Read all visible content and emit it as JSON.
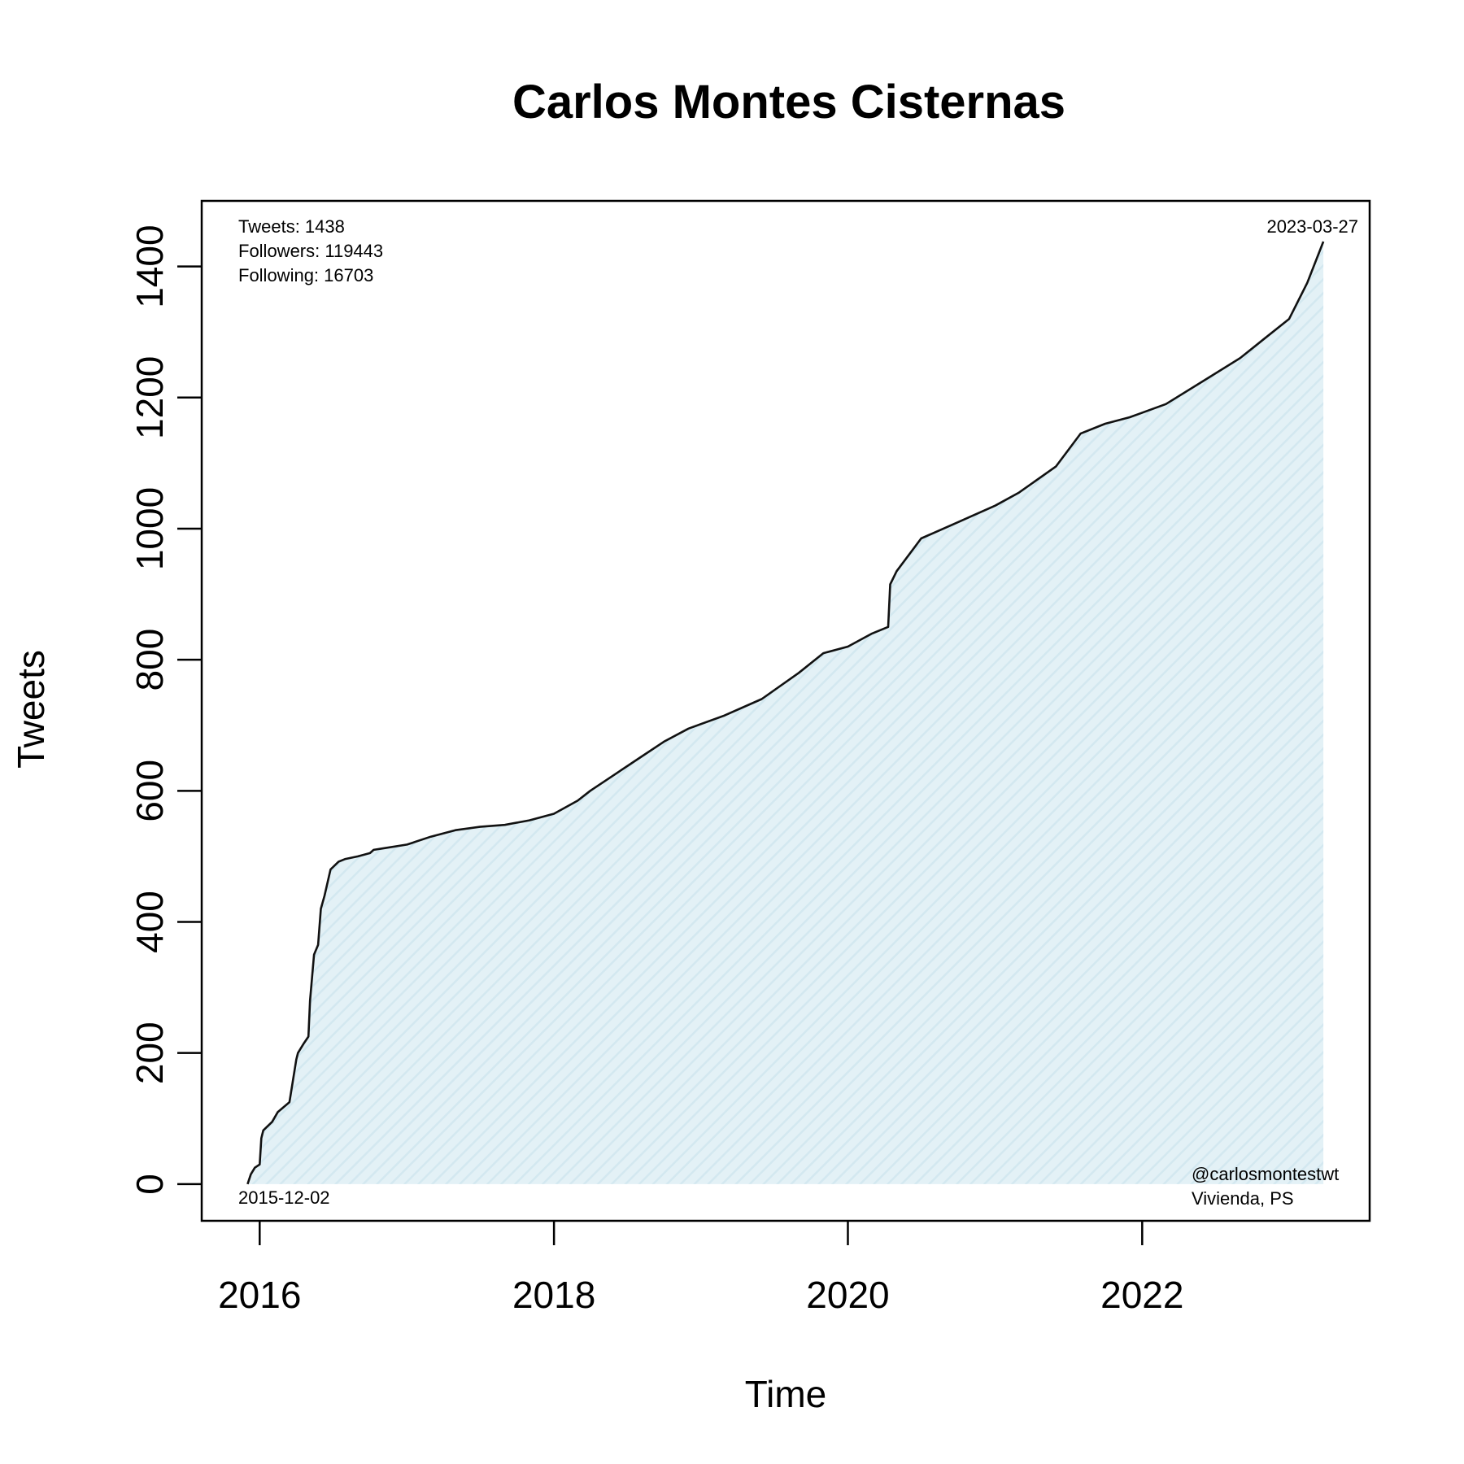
{
  "chart_data": {
    "type": "area",
    "title": "Carlos Montes Cisternas",
    "xlabel": "Time",
    "ylabel": "Tweets",
    "x_ticks": [
      "2016",
      "2018",
      "2020",
      "2022"
    ],
    "y_ticks": [
      0,
      200,
      400,
      600,
      800,
      1000,
      1200,
      1400
    ],
    "xlim": [
      "2015-08-10",
      "2023-07-20"
    ],
    "ylim": [
      -56,
      1500
    ],
    "grid": false,
    "legend": "none",
    "annotations": {
      "tweets": "Tweets: 1438",
      "followers": "Followers: 119443",
      "following": "Following: 16703",
      "start_date": "2015-12-02",
      "end_date": "2023-03-27",
      "handle": "@carlosmontestwt",
      "affiliation": "Vivienda, PS"
    },
    "colors": {
      "line": "#111111",
      "fill": "#e3f1f6"
    },
    "series": [
      {
        "x": [
          "2015-12-02",
          "2015-12-10",
          "2015-12-20",
          "2016-01-01",
          "2016-01-05",
          "2016-01-10",
          "2016-02-01",
          "2016-02-15",
          "2016-03-15",
          "2016-04-01",
          "2016-04-05",
          "2016-04-20",
          "2016-05-01",
          "2016-05-05",
          "2016-05-15",
          "2016-05-25",
          "2016-06-01",
          "2016-06-10",
          "2016-06-25",
          "2016-07-15",
          "2016-08-01",
          "2016-09-01",
          "2016-10-01",
          "2016-10-10",
          "2016-11-01",
          "2017-01-01",
          "2017-03-01",
          "2017-05-01",
          "2017-07-01",
          "2017-09-01",
          "2017-11-01",
          "2018-01-01",
          "2018-03-01",
          "2018-04-01",
          "2018-06-01",
          "2018-08-01",
          "2018-10-01",
          "2018-12-01",
          "2019-03-01",
          "2019-06-01",
          "2019-09-01",
          "2019-11-01",
          "2020-01-01",
          "2020-03-01",
          "2020-04-10",
          "2020-04-15",
          "2020-05-01",
          "2020-07-01",
          "2020-10-01",
          "2021-01-01",
          "2021-03-01",
          "2021-06-01",
          "2021-08-01",
          "2021-10-01",
          "2021-12-01",
          "2022-03-01",
          "2022-06-01",
          "2022-09-01",
          "2022-11-01",
          "2023-01-01",
          "2023-02-15",
          "2023-03-27"
        ],
        "y": [
          0,
          15,
          25,
          30,
          70,
          82,
          95,
          110,
          125,
          190,
          200,
          215,
          225,
          280,
          350,
          365,
          420,
          440,
          480,
          492,
          496,
          500,
          505,
          510,
          512,
          518,
          530,
          540,
          545,
          548,
          555,
          565,
          585,
          600,
          625,
          650,
          675,
          695,
          715,
          740,
          780,
          810,
          820,
          840,
          850,
          915,
          935,
          985,
          1010,
          1035,
          1055,
          1095,
          1145,
          1160,
          1170,
          1190,
          1225,
          1260,
          1290,
          1320,
          1375,
          1438
        ]
      }
    ]
  }
}
